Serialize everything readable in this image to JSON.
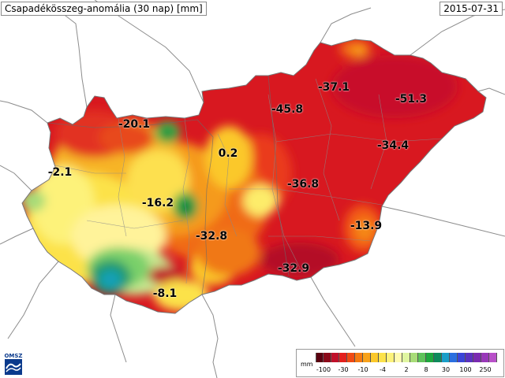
{
  "header": {
    "title": "Csapadékösszeg-anomália (30 nap) [mm]",
    "date": "2015-07-31"
  },
  "map_labels": [
    {
      "text": "-20.1",
      "id": "label-north-west"
    },
    {
      "text": "-2.1",
      "id": "label-far-west"
    },
    {
      "text": "0.2",
      "id": "label-budapest"
    },
    {
      "text": "-16.2",
      "id": "label-balaton-north"
    },
    {
      "text": "-37.1",
      "id": "label-north-east-1"
    },
    {
      "text": "-45.8",
      "id": "label-north-east-2"
    },
    {
      "text": "-51.3",
      "id": "label-far-north-east"
    },
    {
      "text": "-34.4",
      "id": "label-east"
    },
    {
      "text": "-36.8",
      "id": "label-great-plain"
    },
    {
      "text": "-13.9",
      "id": "label-south-east"
    },
    {
      "text": "-32.8",
      "id": "label-center-south"
    },
    {
      "text": "-32.9",
      "id": "label-south"
    },
    {
      "text": "-8.1",
      "id": "label-south-west"
    }
  ],
  "legend": {
    "unit": "mm",
    "colors": [
      "#5a0010",
      "#8b0a1a",
      "#c0102a",
      "#e3201d",
      "#f04a12",
      "#f57a10",
      "#f8a21a",
      "#fbc82a",
      "#fce24a",
      "#fdf27a",
      "#fffbb0",
      "#dff5a0",
      "#a8dc78",
      "#5ec25a",
      "#1ea83e",
      "#0e8a5c",
      "#1a9ec8",
      "#2a6fe0",
      "#3a44d8",
      "#5a32c0",
      "#7a2ab0",
      "#9838b8",
      "#b850c8"
    ],
    "ticks": [
      "-100",
      "-30",
      "-10",
      "-4",
      "2",
      "8",
      "30",
      "100",
      "250"
    ]
  },
  "logo": {
    "text": "OMSZ"
  }
}
